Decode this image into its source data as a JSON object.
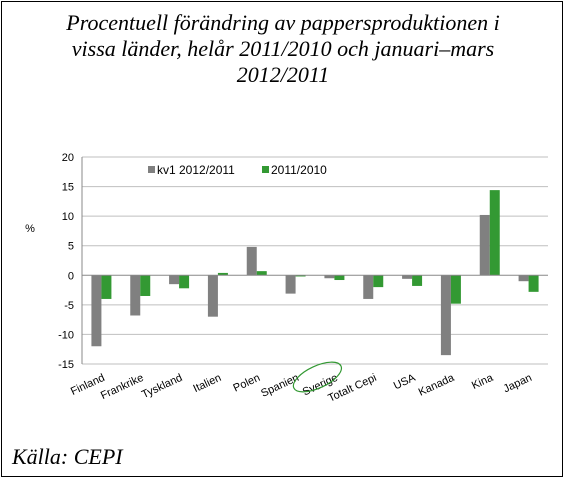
{
  "title_lines": [
    "Procentuell förändring av pappersproduktionen i",
    "vissa länder, helår 2011/2010 och januari–mars",
    "2012/2011"
  ],
  "source": "Källa: CEPI",
  "chart_data": {
    "type": "bar",
    "ylabel": "%",
    "ylim": [
      -15,
      20
    ],
    "yticks": [
      -15,
      -10,
      -5,
      0,
      5,
      10,
      15,
      20
    ],
    "grid": true,
    "legend_position": "top-left",
    "highlighted_category": "Sverige",
    "categories": [
      "Finland",
      "Frankrike",
      "Tyskland",
      "Italien",
      "Polen",
      "Spanien",
      "Sverige",
      "Totalt Cepi",
      "USA",
      "Kanada",
      "Kina",
      "Japan"
    ],
    "series": [
      {
        "name": "kv1 2012/2011",
        "color": "#808080",
        "values": [
          -12.0,
          -6.8,
          -1.5,
          -7.0,
          4.8,
          -3.1,
          -0.5,
          -4.0,
          -0.6,
          -13.5,
          10.2,
          -1.0
        ]
      },
      {
        "name": "2011/2010",
        "color": "#339933",
        "values": [
          -4.0,
          -3.5,
          -2.2,
          0.4,
          0.7,
          -0.2,
          -0.8,
          -2.0,
          -1.8,
          -4.8,
          14.4,
          -2.8
        ]
      }
    ]
  }
}
